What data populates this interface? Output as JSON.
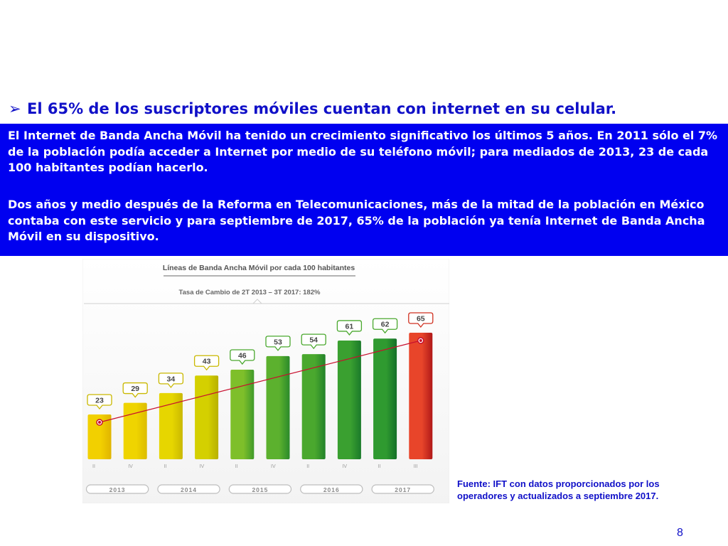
{
  "slide": {
    "bullet_glyph": "➢",
    "headline": "El 65% de los suscriptores móviles cuentan con internet en su celular.",
    "paragraph1": "El Internet de Banda Ancha Móvil ha tenido un crecimiento significativo los últimos 5 años. En 2011 sólo el 7% de la población podía acceder a Internet por medio de su teléfono móvil; para mediados de 2013, 23 de cada 100 habitantes podían hacerlo.",
    "paragraph2": "Dos años y medio después de la Reforma en Telecomunicaciones, más de la mitad de la población en México contaba con este servicio y para septiembre de 2017, 65% de la población ya tenía Internet de Banda Ancha Móvil en su dispositivo.",
    "source": "Fuente: IFT con datos proporcionados por los operadores y actualizados a septiembre 2017.",
    "page_number": "8"
  },
  "colors": {
    "headline": "#1010c8",
    "box_background": "#0000f0",
    "box_text": "#ffffff",
    "trend_line": "#c8102e"
  },
  "chart_data": {
    "type": "bar",
    "title": "Líneas de Banda Ancha Móvil por cada 100 habitantes",
    "subtitle": "Tasa de Cambio de 2T 2013 – 3T 2017: 182%",
    "categories": [
      "II",
      "IV",
      "II",
      "IV",
      "II",
      "IV",
      "II",
      "IV",
      "II",
      "III"
    ],
    "years": [
      {
        "label": "2013",
        "span": 2
      },
      {
        "label": "2014",
        "span": 2
      },
      {
        "label": "2015",
        "span": 2
      },
      {
        "label": "2016",
        "span": 2
      },
      {
        "label": "2017",
        "span": 2
      }
    ],
    "values": [
      23,
      29,
      34,
      43,
      46,
      53,
      54,
      61,
      62,
      65
    ],
    "bar_colors": [
      [
        "#f2d000",
        "#e0b400"
      ],
      [
        "#efd400",
        "#dcbc00"
      ],
      [
        "#e6d600",
        "#c9b800"
      ],
      [
        "#d4d000",
        "#b8b000"
      ],
      [
        "#7ebf2a",
        "#3f9a2a"
      ],
      [
        "#5cb12e",
        "#2a8a2a"
      ],
      [
        "#4aa82e",
        "#22822a"
      ],
      [
        "#3aa030",
        "#1a7a2a"
      ],
      [
        "#2f9a30",
        "#147028"
      ],
      [
        "#e8452a",
        "#b01818"
      ]
    ],
    "trend": {
      "from_index": 0,
      "to_index": 9
    },
    "ylim": [
      0,
      70
    ],
    "xlabel": "",
    "ylabel": "",
    "grid": false,
    "legend": "none"
  }
}
